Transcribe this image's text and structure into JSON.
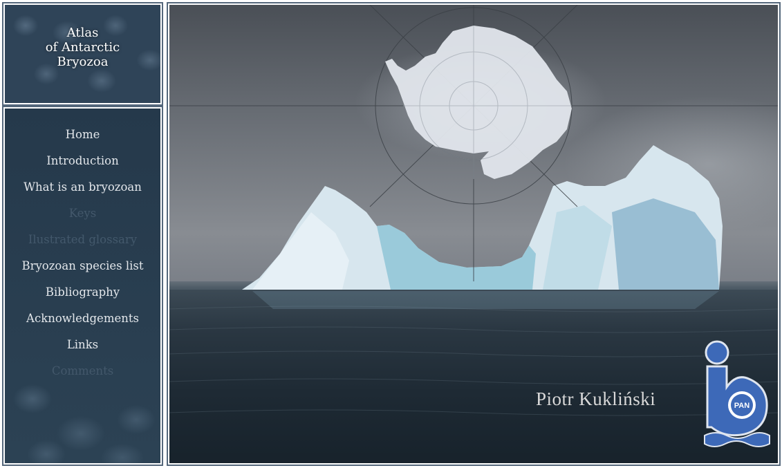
{
  "site": {
    "title_lines": [
      "Atlas",
      "of Antarctic",
      "Bryozoa"
    ]
  },
  "nav": {
    "items": [
      {
        "label": "Home",
        "enabled": true
      },
      {
        "label": "Introduction",
        "enabled": true
      },
      {
        "label": "What is an bryozoan",
        "enabled": true
      },
      {
        "label": "Keys",
        "enabled": false
      },
      {
        "label": "Ilustrated glossary",
        "enabled": false
      },
      {
        "label": "Bryozoan species list",
        "enabled": true
      },
      {
        "label": "Bibliography",
        "enabled": true
      },
      {
        "label": "Acknowledgements",
        "enabled": true
      },
      {
        "label": "Links",
        "enabled": true
      },
      {
        "label": "Comments",
        "enabled": false
      }
    ]
  },
  "hero": {
    "author": "Piotr Kukliński",
    "logo_text": "PAN",
    "images": [
      "antarctica-map-icon",
      "iceberg-photo",
      "iopan-logo-icon"
    ]
  },
  "colors": {
    "panel": "#2f4458",
    "nav_text": "#e3e7eb",
    "nav_text_disabled": "#43586b",
    "frame_border": "#54677b",
    "logo_blue": "#3d69b8"
  }
}
